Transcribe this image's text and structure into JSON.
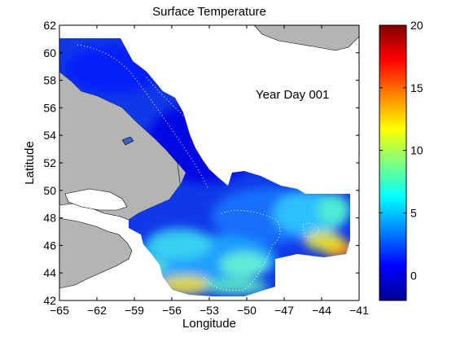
{
  "title": "Surface Temperature",
  "xlabel": "Longitude",
  "ylabel": "Latitude",
  "annotation": "Year Day 001",
  "map": {
    "x_ticks": [
      "−65",
      "−62",
      "−59",
      "−56",
      "−53",
      "−50",
      "−47",
      "−44",
      "−41"
    ],
    "y_ticks": [
      "42",
      "44",
      "46",
      "48",
      "50",
      "52",
      "54",
      "56",
      "58",
      "60",
      "62"
    ],
    "lon_range": [
      -65,
      -41
    ],
    "lat_range": [
      42,
      62
    ],
    "land_color": "#b4b4b4",
    "water_color": "#ffffff"
  },
  "colorbar": {
    "ticks": [
      "0",
      "5",
      "10",
      "15",
      "20"
    ],
    "range": [
      -2,
      20
    ],
    "colormap": "jet"
  }
}
